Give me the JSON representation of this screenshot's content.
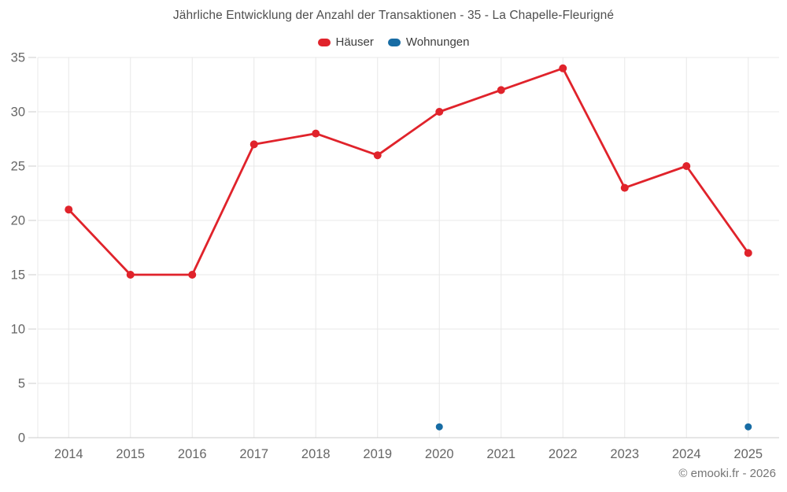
{
  "chart_data": {
    "type": "line",
    "title": "Jährliche Entwicklung der Anzahl der Transaktionen - 35 - La Chapelle-Fleurigné",
    "categories": [
      "2014",
      "2015",
      "2016",
      "2017",
      "2018",
      "2019",
      "2020",
      "2021",
      "2022",
      "2023",
      "2024",
      "2025"
    ],
    "series": [
      {
        "name": "Häuser",
        "color": "#e0232b",
        "marker_radius": 5,
        "values": [
          21,
          15,
          15,
          27,
          28,
          26,
          30,
          32,
          34,
          23,
          25,
          17
        ]
      },
      {
        "name": "Wohnungen",
        "color": "#176ca4",
        "marker_radius": 4.5,
        "values": [
          null,
          null,
          null,
          null,
          null,
          null,
          1,
          null,
          null,
          null,
          null,
          1
        ]
      }
    ],
    "xlabel": "",
    "ylabel": "",
    "ylim": [
      0,
      35
    ],
    "ytick_step": 5,
    "yticks": [
      0,
      5,
      10,
      15,
      20,
      25,
      30,
      35
    ],
    "grid": true,
    "legend_position": "top"
  },
  "theme": {
    "grid_color": "#e8e8e8",
    "axis_line_color": "#cccccc",
    "tick_color": "#cccccc",
    "axis_label_color": "#666666"
  },
  "footer": {
    "copyright": "© emooki.fr - 2026"
  }
}
